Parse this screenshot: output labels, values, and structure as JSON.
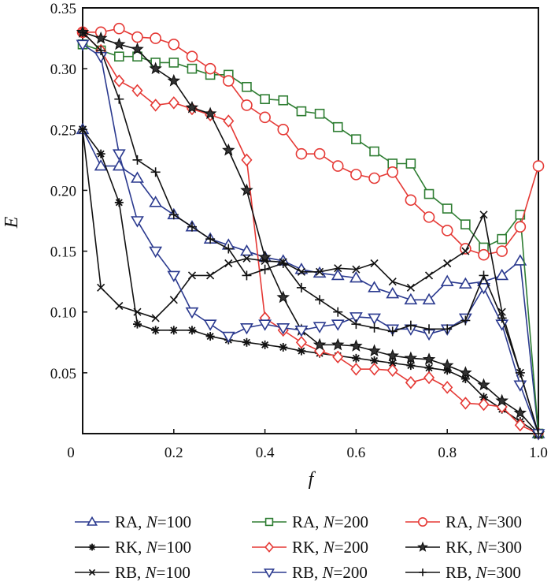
{
  "chart_data": {
    "type": "line",
    "title": "",
    "xlabel": "f",
    "ylabel": "E",
    "xlim": [
      0,
      1.0
    ],
    "ylim": [
      0,
      0.35
    ],
    "xticks": [
      0,
      0.2,
      0.4,
      0.6,
      0.8,
      1.0
    ],
    "xtick_labels": [
      "0",
      "0.2",
      "0.4",
      "0.6",
      "0.8",
      "1.0"
    ],
    "yticks": [
      0.05,
      0.1,
      0.15,
      0.2,
      0.25,
      0.3,
      0.35
    ],
    "ytick_labels": [
      "0.05",
      "0.10",
      "0.15",
      "0.20",
      "0.25",
      "0.30",
      "0.35"
    ],
    "grid": false,
    "legend_position": "bottom",
    "x": [
      0,
      0.04,
      0.08,
      0.12,
      0.16,
      0.2,
      0.24,
      0.28,
      0.32,
      0.36,
      0.4,
      0.44,
      0.48,
      0.52,
      0.56,
      0.6,
      0.64,
      0.68,
      0.72,
      0.76,
      0.8,
      0.84,
      0.88,
      0.92,
      0.96,
      1.0
    ],
    "series": [
      {
        "name": "RA, N=100",
        "method": "RA",
        "n": "100",
        "color": "#2b3a8f",
        "marker": "triangle-up",
        "values": [
          0.25,
          0.22,
          0.22,
          0.21,
          0.19,
          0.18,
          0.17,
          0.16,
          0.155,
          0.15,
          0.145,
          0.142,
          0.135,
          0.132,
          0.13,
          0.128,
          0.12,
          0.115,
          0.11,
          0.11,
          0.125,
          0.123,
          0.125,
          0.13,
          0.142,
          0.0
        ]
      },
      {
        "name": "RA, N=200",
        "method": "RA",
        "n": "200",
        "color": "#2e7d32",
        "marker": "square",
        "values": [
          0.32,
          0.315,
          0.31,
          0.31,
          0.305,
          0.305,
          0.3,
          0.295,
          0.295,
          0.285,
          0.275,
          0.274,
          0.265,
          0.263,
          0.252,
          0.242,
          0.232,
          0.222,
          0.222,
          0.197,
          0.185,
          0.172,
          0.153,
          0.16,
          0.18,
          0.0
        ]
      },
      {
        "name": "RA, N=300",
        "method": "RA",
        "n": "300",
        "color": "#e53935",
        "marker": "circle",
        "values": [
          0.33,
          0.33,
          0.333,
          0.326,
          0.325,
          0.32,
          0.31,
          0.3,
          0.29,
          0.27,
          0.26,
          0.25,
          0.23,
          0.23,
          0.22,
          0.213,
          0.21,
          0.215,
          0.192,
          0.178,
          0.167,
          0.152,
          0.147,
          0.15,
          0.17,
          0.22
        ]
      },
      {
        "name": "RK, N=100",
        "method": "RK",
        "n": "100",
        "color": "#111111",
        "marker": "asterisk",
        "values": [
          0.25,
          0.23,
          0.19,
          0.09,
          0.085,
          0.085,
          0.085,
          0.08,
          0.077,
          0.075,
          0.073,
          0.071,
          0.068,
          0.066,
          0.064,
          0.062,
          0.06,
          0.058,
          0.056,
          0.054,
          0.052,
          0.045,
          0.03,
          0.02,
          0.01,
          0.0
        ]
      },
      {
        "name": "RK, N=200",
        "method": "RK",
        "n": "200",
        "color": "#e53935",
        "marker": "diamond",
        "values": [
          0.33,
          0.315,
          0.29,
          0.282,
          0.27,
          0.272,
          0.267,
          0.262,
          0.257,
          0.225,
          0.095,
          0.085,
          0.075,
          0.068,
          0.063,
          0.053,
          0.053,
          0.052,
          0.042,
          0.046,
          0.038,
          0.025,
          0.024,
          0.022,
          0.007,
          0.0
        ]
      },
      {
        "name": "RK, N=300",
        "method": "RK",
        "n": "300",
        "color": "#111111",
        "marker": "star",
        "values": [
          0.33,
          0.325,
          0.32,
          0.316,
          0.3,
          0.29,
          0.268,
          0.263,
          0.233,
          0.2,
          0.145,
          0.112,
          0.085,
          0.073,
          0.073,
          0.072,
          0.068,
          0.064,
          0.062,
          0.061,
          0.056,
          0.05,
          0.04,
          0.027,
          0.017,
          0.0
        ]
      },
      {
        "name": "RB, N=100",
        "method": "RB",
        "n": "100",
        "color": "#111111",
        "marker": "x",
        "values": [
          0.25,
          0.12,
          0.105,
          0.1,
          0.095,
          0.11,
          0.13,
          0.13,
          0.14,
          0.144,
          0.142,
          0.141,
          0.133,
          0.133,
          0.136,
          0.135,
          0.14,
          0.125,
          0.12,
          0.13,
          0.14,
          0.15,
          0.18,
          0.1,
          0.05,
          0.0
        ]
      },
      {
        "name": "RB, N=200",
        "method": "RB",
        "n": "200",
        "color": "#2b3a8f",
        "marker": "triangle-down",
        "values": [
          0.32,
          0.31,
          0.23,
          0.175,
          0.15,
          0.13,
          0.1,
          0.09,
          0.08,
          0.087,
          0.09,
          0.087,
          0.085,
          0.088,
          0.09,
          0.096,
          0.095,
          0.086,
          0.086,
          0.082,
          0.086,
          0.095,
          0.12,
          0.09,
          0.04,
          0.0
        ]
      },
      {
        "name": "RB, N=300",
        "method": "RB",
        "n": "300",
        "color": "#111111",
        "marker": "plus",
        "values": [
          0.33,
          0.315,
          0.275,
          0.225,
          0.215,
          0.18,
          0.17,
          0.16,
          0.152,
          0.13,
          0.135,
          0.14,
          0.12,
          0.11,
          0.1,
          0.09,
          0.087,
          0.084,
          0.089,
          0.086,
          0.086,
          0.093,
          0.13,
          0.095,
          0.05,
          0.0
        ]
      }
    ],
    "legend": [
      {
        "prefix": "RA, ",
        "var": "N",
        "eq": "=100"
      },
      {
        "prefix": "RA, ",
        "var": "N",
        "eq": "=200"
      },
      {
        "prefix": "RA, ",
        "var": "N",
        "eq": "=300"
      },
      {
        "prefix": "RK, ",
        "var": "N",
        "eq": "=100"
      },
      {
        "prefix": "RK, ",
        "var": "N",
        "eq": "=200"
      },
      {
        "prefix": "RK, ",
        "var": "N",
        "eq": "=300"
      },
      {
        "prefix": "RB, ",
        "var": "N",
        "eq": "=100"
      },
      {
        "prefix": "RB, ",
        "var": "N",
        "eq": "=200"
      },
      {
        "prefix": "RB, ",
        "var": "N",
        "eq": "=300"
      }
    ]
  }
}
